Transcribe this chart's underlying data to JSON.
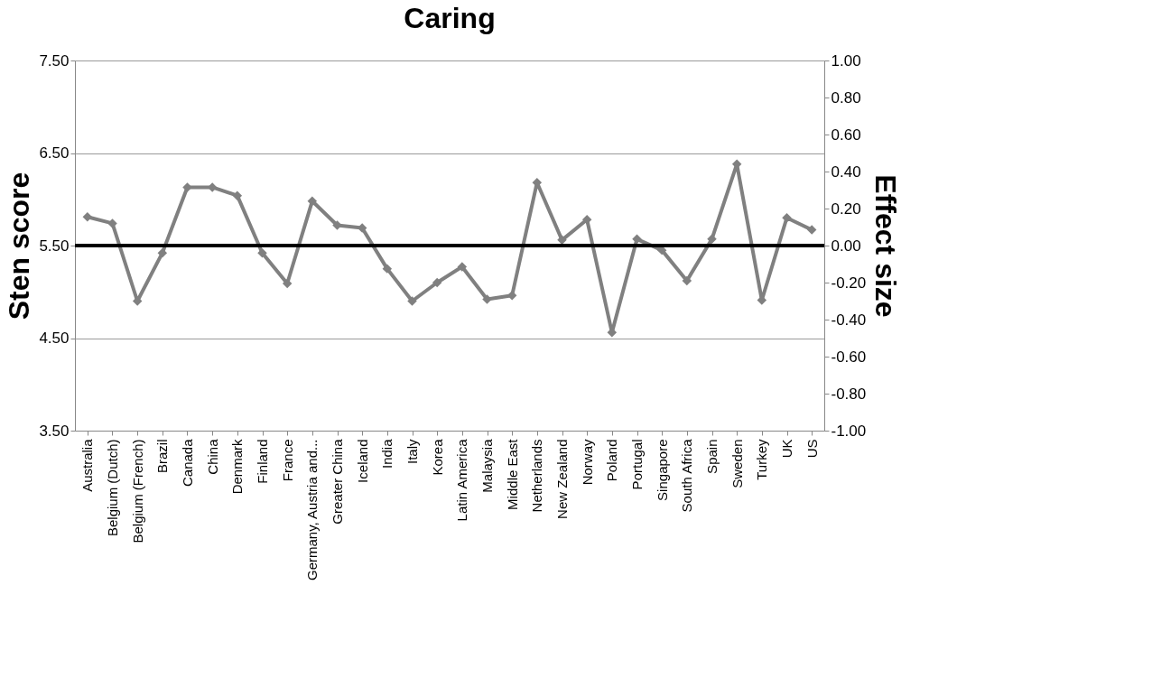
{
  "chart_data": {
    "type": "line",
    "title": "Caring",
    "ylabel": "Sten score",
    "y2label": "Effect size",
    "categories": [
      "Australia",
      "Belgium (Dutch)",
      "Belgium (French)",
      "Brazil",
      "Canada",
      "China",
      "Denmark",
      "Finland",
      "France",
      "Germany, Austria and...",
      "Greater China",
      "Iceland",
      "India",
      "Italy",
      "Korea",
      "Latin America",
      "Malaysia",
      "Middle East",
      "Netherlands",
      "New Zealand",
      "Norway",
      "Poland",
      "Portugal",
      "Singapore",
      "South Africa",
      "Spain",
      "Sweden",
      "Turkey",
      "UK",
      "US"
    ],
    "series": [
      {
        "color": "#808080",
        "values": [
          5.81,
          5.74,
          4.9,
          5.42,
          6.13,
          6.13,
          6.04,
          5.42,
          5.09,
          5.98,
          5.72,
          5.69,
          5.25,
          4.9,
          5.1,
          5.27,
          4.92,
          4.96,
          6.18,
          5.56,
          5.78,
          4.56,
          5.57,
          5.45,
          5.12,
          5.57,
          6.38,
          4.91,
          5.8,
          5.67
        ]
      }
    ],
    "ylim": [
      3.5,
      7.5
    ],
    "yticks": [
      {
        "value": 3.5,
        "label": "3.50"
      },
      {
        "value": 4.5,
        "label": "4.50"
      },
      {
        "value": 5.5,
        "label": "5.50"
      },
      {
        "value": 6.5,
        "label": "6.50"
      },
      {
        "value": 7.5,
        "label": "7.50"
      }
    ],
    "y2lim": [
      -1,
      1
    ],
    "y2ticks": [
      {
        "value": -1,
        "label": "-1.00"
      },
      {
        "value": -0.8,
        "label": "-0.80"
      },
      {
        "value": -0.6,
        "label": "-0.60"
      },
      {
        "value": -0.4,
        "label": "-0.40"
      },
      {
        "value": -0.2,
        "label": "-0.20"
      },
      {
        "value": 0,
        "label": "0.00"
      },
      {
        "value": 0.2,
        "label": "0.20"
      },
      {
        "value": 0.4,
        "label": "0.40"
      },
      {
        "value": 0.6,
        "label": "0.60"
      },
      {
        "value": 0.8,
        "label": "0.80"
      },
      {
        "value": 1,
        "label": "1.00"
      }
    ],
    "ref_lines": [
      {
        "axis": "y2",
        "value": 0,
        "color": "#000000"
      }
    ],
    "grid": "y",
    "marker": "diamond",
    "line_style": "solid"
  }
}
